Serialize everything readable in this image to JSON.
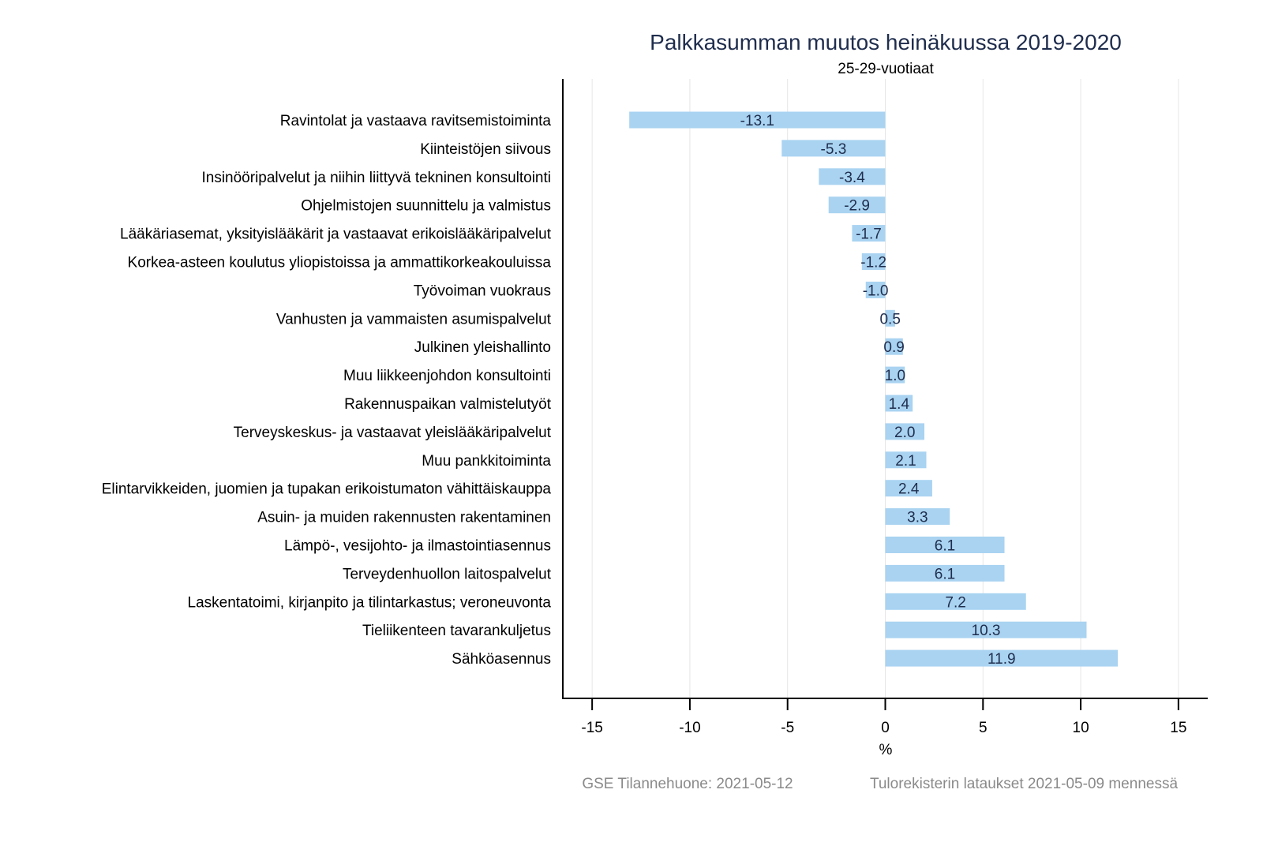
{
  "chart_data": {
    "type": "bar",
    "orientation": "horizontal",
    "title": "Palkkasumman muutos heinäkuussa 2019-2020",
    "subtitle": "25-29-vuotiaat",
    "xlabel": "%",
    "ylabel": "",
    "xlim": [
      -16.5,
      16.5
    ],
    "xticks": [
      -15,
      -10,
      -5,
      0,
      5,
      10,
      15
    ],
    "grid": true,
    "bar_color": "#a9d3f1",
    "categories": [
      "Ravintolat ja vastaava ravitsemistoiminta",
      "Kiinteistöjen siivous",
      "Insinööripalvelut ja niihin liittyvä tekninen konsultointi",
      "Ohjelmistojen suunnittelu ja valmistus",
      "Lääkäriasemat, yksityislääkärit ja vastaavat erikoislääkäripalvelut",
      "Korkea-asteen koulutus yliopistoissa ja ammattikorkeakouluissa",
      "Työvoiman vuokraus",
      "Vanhusten ja vammaisten asumispalvelut",
      "Julkinen yleishallinto",
      "Muu liikkeenjohdon konsultointi",
      "Rakennuspaikan valmistelutyöt",
      "Terveyskeskus- ja vastaavat yleislääkäripalvelut",
      "Muu pankkitoiminta",
      "Elintarvikkeiden, juomien ja tupakan erikoistumaton vähittäiskauppa",
      "Asuin- ja muiden rakennusten rakentaminen",
      "Lämpö-, vesijohto- ja ilmastointiasennus",
      "Terveydenhuollon laitospalvelut",
      "Laskentatoimi, kirjanpito ja tilintarkastus; veroneuvonta",
      "Tieliikenteen tavarankuljetus",
      "Sähköasennus"
    ],
    "values": [
      -13.1,
      -5.3,
      -3.4,
      -2.9,
      -1.7,
      -1.2,
      -1.0,
      0.5,
      0.9,
      1.0,
      1.4,
      2.0,
      2.1,
      2.4,
      3.3,
      6.1,
      6.1,
      7.2,
      10.3,
      11.9
    ],
    "value_labels": [
      "-13.1",
      "-5.3",
      "-3.4",
      "-2.9",
      "-1.7",
      "-1.2",
      "-1.0",
      "0.5",
      "0.9",
      "1.0",
      "1.4",
      "2.0",
      "2.1",
      "2.4",
      "3.3",
      "6.1",
      "6.1",
      "7.2",
      "10.3",
      "11.9"
    ],
    "footer_left": "GSE Tilannehuone: 2021-05-12",
    "footer_right": "Tulorekisterin lataukset 2021-05-09 mennessä"
  }
}
